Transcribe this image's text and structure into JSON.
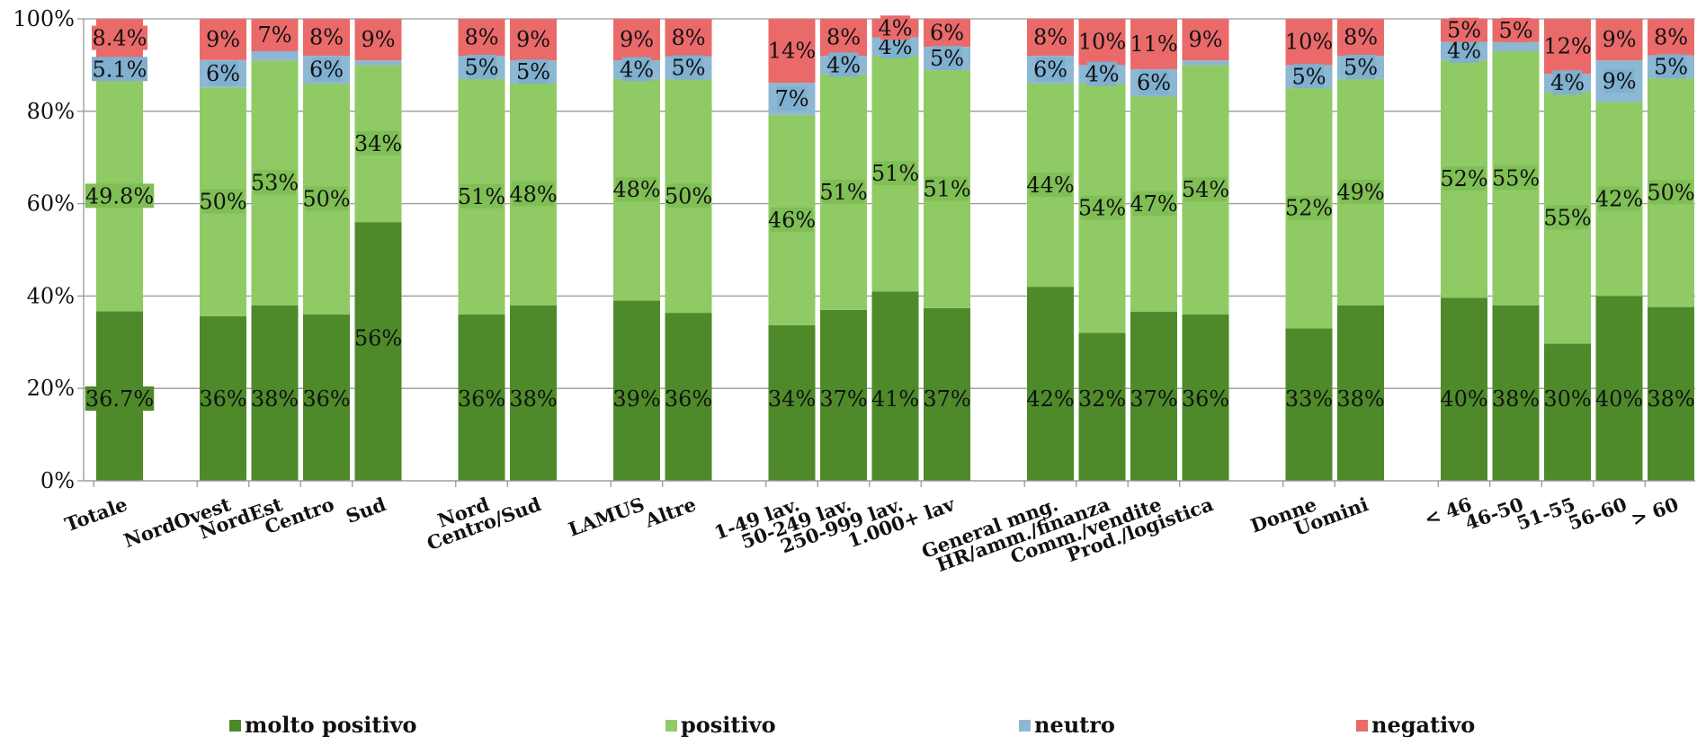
{
  "chart_data": {
    "type": "bar",
    "stacked": true,
    "percent_stacked": true,
    "ylim": [
      0,
      100
    ],
    "y_ticks": [
      "0%",
      "20%",
      "40%",
      "60%",
      "80%",
      "100%"
    ],
    "y_tick_values": [
      0,
      20,
      40,
      60,
      80,
      100
    ],
    "legend_position": "bottom",
    "grid": true,
    "colors": {
      "molto positivo": "#4e8a2a",
      "positivo": "#8fca64",
      "neutro": "#8cb8d4",
      "negativo": "#ea6a6a",
      "label_bg_dark": "#4e8a2a",
      "label_bg_light": "#7fbf55",
      "label_bg_blue": "#7fb0d0",
      "label_bg_red": "#ea6a6a"
    },
    "series_names": [
      "molto positivo",
      "positivo",
      "neutro",
      "negativo"
    ],
    "categories": [
      "Totale",
      "NordOvest",
      "NordEst",
      "Centro",
      "Sud",
      "Nord",
      "Centro/Sud",
      "LAMUS",
      "Altre",
      "1-49 lav.",
      "50-249 lav.",
      "250-999 lav.",
      "1.000+ lav",
      "General mng.",
      "HR/amm./finanza",
      "Comm./vendite",
      "Prod./logistica",
      "Donne",
      "Uomini",
      "< 46",
      "46-50",
      "51-55",
      "56-60",
      "> 60"
    ],
    "group_sizes": [
      1,
      4,
      2,
      2,
      4,
      4,
      2,
      5
    ],
    "bars": [
      {
        "values": [
          36.7,
          49.8,
          5.1,
          8.4
        ],
        "labels": [
          "36.7%",
          "49.8%",
          "5.1%",
          "8.4%"
        ]
      },
      {
        "values": [
          36,
          50,
          6,
          9
        ],
        "labels": [
          "36%",
          "50%",
          "6%",
          "9%"
        ]
      },
      {
        "values": [
          38,
          53,
          2,
          7
        ],
        "labels": [
          "38%",
          "53%",
          "",
          "7%"
        ]
      },
      {
        "values": [
          36,
          50,
          6,
          8
        ],
        "labels": [
          "36%",
          "50%",
          "6%",
          "8%"
        ]
      },
      {
        "values": [
          56,
          34,
          1,
          9
        ],
        "labels": [
          "56%",
          "34%",
          "",
          "9%"
        ]
      },
      {
        "values": [
          36,
          51,
          5,
          8
        ],
        "labels": [
          "36%",
          "51%",
          "5%",
          "8%"
        ]
      },
      {
        "values": [
          38,
          48,
          5,
          9
        ],
        "labels": [
          "38%",
          "48%",
          "5%",
          "9%"
        ]
      },
      {
        "values": [
          39,
          48,
          4,
          9
        ],
        "labels": [
          "39%",
          "48%",
          "4%",
          "9%"
        ]
      },
      {
        "values": [
          36,
          50,
          5,
          8
        ],
        "labels": [
          "36%",
          "50%",
          "5%",
          "8%"
        ]
      },
      {
        "values": [
          34,
          46,
          7,
          14
        ],
        "labels": [
          "34%",
          "46%",
          "7%",
          "14%"
        ]
      },
      {
        "values": [
          37,
          51,
          4,
          8
        ],
        "labels": [
          "37%",
          "51%",
          "4%",
          "8%"
        ]
      },
      {
        "values": [
          41,
          51,
          4,
          4
        ],
        "labels": [
          "41%",
          "51%",
          "4%",
          "4%"
        ]
      },
      {
        "values": [
          37,
          51,
          5,
          6
        ],
        "labels": [
          "37%",
          "51%",
          "5%",
          "6%"
        ]
      },
      {
        "values": [
          42,
          44,
          6,
          8
        ],
        "labels": [
          "42%",
          "44%",
          "6%",
          "8%"
        ]
      },
      {
        "values": [
          32,
          54,
          4,
          10
        ],
        "labels": [
          "32%",
          "54%",
          "4%",
          "10%"
        ]
      },
      {
        "values": [
          37,
          47,
          6,
          11
        ],
        "labels": [
          "37%",
          "47%",
          "6%",
          "11%"
        ]
      },
      {
        "values": [
          36,
          54,
          1,
          9
        ],
        "labels": [
          "36%",
          "54%",
          "",
          "9%"
        ]
      },
      {
        "values": [
          33,
          52,
          5,
          10
        ],
        "labels": [
          "33%",
          "52%",
          "5%",
          "10%"
        ]
      },
      {
        "values": [
          38,
          49,
          5,
          8
        ],
        "labels": [
          "38%",
          "49%",
          "5%",
          "8%"
        ]
      },
      {
        "values": [
          40,
          52,
          4,
          5
        ],
        "labels": [
          "40%",
          "52%",
          "4%",
          "5%"
        ]
      },
      {
        "values": [
          38,
          55,
          2,
          5
        ],
        "labels": [
          "38%",
          "55%",
          "",
          "5%"
        ]
      },
      {
        "values": [
          30,
          55,
          4,
          12
        ],
        "labels": [
          "30%",
          "55%",
          "4%",
          "12%"
        ]
      },
      {
        "values": [
          40,
          42,
          9,
          9
        ],
        "labels": [
          "40%",
          "42%",
          "9%",
          "9%"
        ]
      },
      {
        "values": [
          38,
          50,
          5,
          8
        ],
        "labels": [
          "38%",
          "50%",
          "5%",
          "8%"
        ]
      }
    ]
  }
}
